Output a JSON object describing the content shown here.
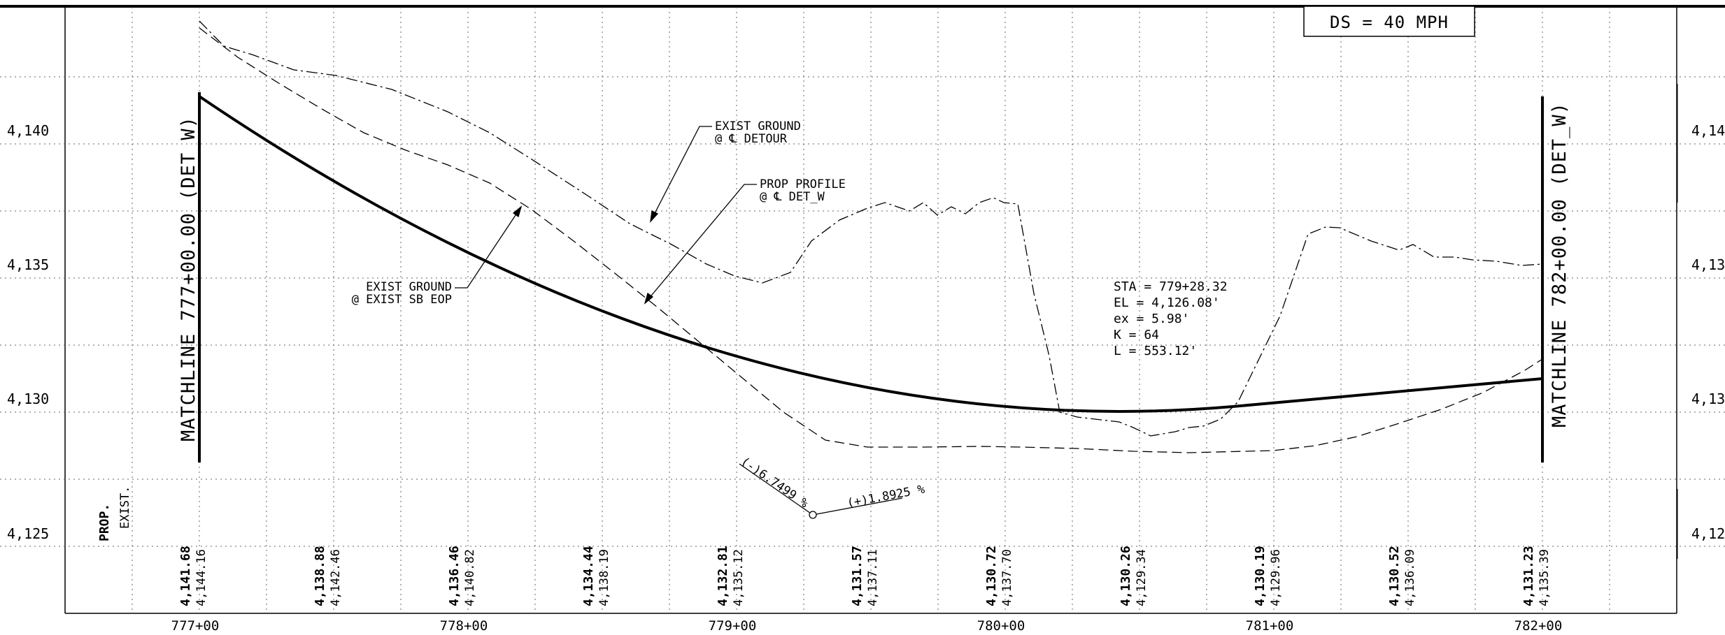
{
  "design_speed": "DS = 40 MPH",
  "elevation_labels_left": [
    "4,140",
    "4,135",
    "4,130",
    "4,125"
  ],
  "elevation_labels_right": [
    "4,14",
    "4,13",
    "4,13",
    "4,12"
  ],
  "station_labels": [
    "777+00",
    "778+00",
    "779+00",
    "780+00",
    "781+00",
    "782+00"
  ],
  "matchline_left": "MATCHLINE 777+00.00 (DET_W)",
  "matchline_right": "MATCHLINE 782+00.00 (DET_W)",
  "callouts": {
    "exist_ground_detour_1": "EXIST GROUND",
    "exist_ground_detour_2": "@ ℄ DETOUR",
    "prop_profile_1": "PROP PROFILE",
    "prop_profile_2": "@ ℄ DET_W",
    "exist_ground_sb_1": "EXIST GROUND",
    "exist_ground_sb_2": "@ EXIST SB EOP"
  },
  "curve_data": {
    "sta": "STA = 779+28.32",
    "el": "EL  = 4,126.08'",
    "ex": "ex = 5.98'",
    "k": "K = 64",
    "l": "L   = 553.12'"
  },
  "grades": {
    "back": "(-)6.7499 %",
    "ahead": "(+)1.8925 %"
  },
  "row_labels": {
    "prop": "PROP.",
    "exist": "EXIST."
  },
  "elevation_table": [
    {
      "prop": "4,141.68",
      "exist": "4,144.16"
    },
    {
      "prop": "4,138.88",
      "exist": "4,142.46"
    },
    {
      "prop": "4,136.46",
      "exist": "4,140.82"
    },
    {
      "prop": "4,134.44",
      "exist": "4,138.19"
    },
    {
      "prop": "4,132.81",
      "exist": "4,135.12"
    },
    {
      "prop": "4,131.57",
      "exist": "4,137.11"
    },
    {
      "prop": "4,130.72",
      "exist": "4,137.70"
    },
    {
      "prop": "4,130.26",
      "exist": "4,129.34"
    },
    {
      "prop": "4,130.19",
      "exist": "4,129.96"
    },
    {
      "prop": "4,130.52",
      "exist": "4,136.09"
    },
    {
      "prop": "4,131.23",
      "exist": "4,135.39"
    }
  ]
}
